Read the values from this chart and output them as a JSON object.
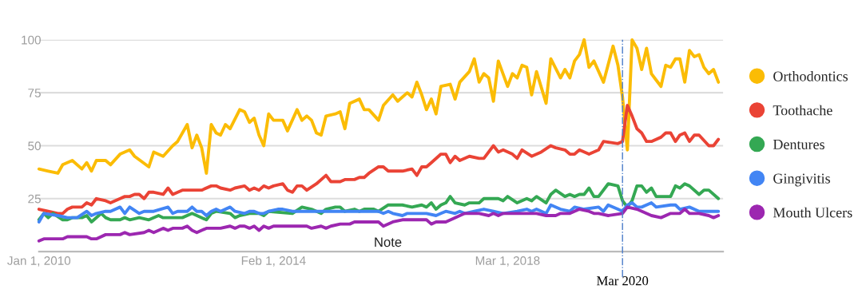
{
  "chart_data": {
    "type": "line",
    "xlim": [
      "2010-01",
      "2021-12"
    ],
    "ylim": [
      0,
      100
    ],
    "xticks": [
      {
        "value": "2010-01",
        "label": "Jan 1, 2010"
      },
      {
        "value": "2014-02",
        "label": "Feb 1, 2014"
      },
      {
        "value": "2018-03",
        "label": "Mar 1, 2018"
      }
    ],
    "yticks": [
      25,
      50,
      75,
      100
    ],
    "grid": "y",
    "legend": "right",
    "marker": "none",
    "line_style": "solid",
    "ref_lines": [
      {
        "axis": "x",
        "value": "2020-03",
        "label": "Mar 2020",
        "color": "#4a7cc9",
        "line_style": "dashed"
      }
    ],
    "annotations": [
      "Note"
    ],
    "series": [
      {
        "name": "Orthodontics",
        "color": "#fbbc05",
        "x": [
          "2010-01",
          "2010-03",
          "2010-05",
          "2010-06",
          "2010-08",
          "2010-10",
          "2010-11",
          "2010-12",
          "2011-01",
          "2011-03",
          "2011-04",
          "2011-06",
          "2011-08",
          "2011-09",
          "2011-12",
          "2012-01",
          "2012-03",
          "2012-05",
          "2012-06",
          "2012-08",
          "2012-09",
          "2012-10",
          "2012-11",
          "2012-12",
          "2013-01",
          "2013-02",
          "2013-03",
          "2013-04",
          "2013-05",
          "2013-07",
          "2013-08",
          "2013-09",
          "2013-10",
          "2013-11",
          "2013-12",
          "2014-01",
          "2014-02",
          "2014-04",
          "2014-05",
          "2014-07",
          "2014-08",
          "2014-09",
          "2014-10",
          "2014-11",
          "2014-12",
          "2015-01",
          "2015-03",
          "2015-04",
          "2015-05",
          "2015-06",
          "2015-08",
          "2015-09",
          "2015-10",
          "2015-12",
          "2016-01",
          "2016-03",
          "2016-04",
          "2016-06",
          "2016-07",
          "2016-08",
          "2016-09",
          "2016-10",
          "2016-11",
          "2016-12",
          "2017-01",
          "2017-03",
          "2017-04",
          "2017-05",
          "2017-07",
          "2017-08",
          "2017-09",
          "2017-10",
          "2017-11",
          "2017-12",
          "2018-01",
          "2018-03",
          "2018-04",
          "2018-05",
          "2018-06",
          "2018-07",
          "2018-08",
          "2018-09",
          "2018-11",
          "2018-12",
          "2019-02",
          "2019-03",
          "2019-04",
          "2019-05",
          "2019-06",
          "2019-07",
          "2019-08",
          "2019-09",
          "2019-11",
          "2020-01",
          "2020-02",
          "2020-03",
          "2020-04",
          "2020-05",
          "2020-06",
          "2020-07",
          "2020-08",
          "2020-09",
          "2020-10",
          "2020-11",
          "2020-12",
          "2021-01",
          "2021-02",
          "2021-03",
          "2021-04",
          "2021-05",
          "2021-06",
          "2021-07",
          "2021-08",
          "2021-09",
          "2021-10",
          "2021-11"
        ],
        "values": [
          39,
          38,
          37,
          41,
          43,
          39,
          42,
          38,
          43,
          43,
          41,
          46,
          48,
          45,
          40,
          47,
          45,
          50,
          52,
          60,
          49,
          55,
          49,
          37,
          60,
          56,
          55,
          60,
          58,
          67,
          66,
          61,
          63,
          55,
          50,
          65,
          62,
          62,
          57,
          67,
          62,
          64,
          62,
          56,
          55,
          64,
          65,
          66,
          58,
          70,
          72,
          67,
          67,
          62,
          69,
          74,
          71,
          75,
          73,
          80,
          74,
          67,
          72,
          65,
          78,
          79,
          72,
          80,
          85,
          91,
          80,
          84,
          82,
          71,
          90,
          78,
          84,
          82,
          88,
          87,
          74,
          85,
          70,
          91,
          82,
          86,
          82,
          90,
          93,
          100,
          87,
          90,
          80,
          97,
          88,
          73,
          48,
          100,
          96,
          86,
          96,
          84,
          81,
          78,
          88,
          87,
          91,
          91,
          80,
          95,
          92,
          93,
          87,
          84,
          86,
          80
        ]
      },
      {
        "name": "Toothache",
        "color": "#ea4335",
        "x": [
          "2010-01",
          "2010-03",
          "2010-05",
          "2010-06",
          "2010-07",
          "2010-08",
          "2010-10",
          "2010-11",
          "2010-12",
          "2011-01",
          "2011-03",
          "2011-04",
          "2011-06",
          "2011-07",
          "2011-08",
          "2011-09",
          "2011-10",
          "2011-11",
          "2011-12",
          "2012-01",
          "2012-03",
          "2012-04",
          "2012-05",
          "2012-07",
          "2012-08",
          "2012-11",
          "2013-01",
          "2013-02",
          "2013-03",
          "2013-05",
          "2013-06",
          "2013-08",
          "2013-09",
          "2013-10",
          "2013-11",
          "2013-12",
          "2014-01",
          "2014-02",
          "2014-04",
          "2014-05",
          "2014-06",
          "2014-07",
          "2014-08",
          "2014-09",
          "2014-11",
          "2015-01",
          "2015-02",
          "2015-04",
          "2015-05",
          "2015-07",
          "2015-08",
          "2015-09",
          "2015-10",
          "2015-12",
          "2016-01",
          "2016-02",
          "2016-05",
          "2016-07",
          "2016-08",
          "2016-09",
          "2016-10",
          "2016-11",
          "2017-01",
          "2017-02",
          "2017-03",
          "2017-04",
          "2017-05",
          "2017-07",
          "2017-09",
          "2017-10",
          "2017-12",
          "2018-01",
          "2018-02",
          "2018-04",
          "2018-05",
          "2018-06",
          "2018-08",
          "2018-10",
          "2018-12",
          "2019-01",
          "2019-03",
          "2019-04",
          "2019-05",
          "2019-06",
          "2019-08",
          "2019-10",
          "2019-11",
          "2020-02",
          "2020-03",
          "2020-04",
          "2020-05",
          "2020-06",
          "2020-07",
          "2020-08",
          "2020-09",
          "2020-11",
          "2020-12",
          "2021-01",
          "2021-02",
          "2021-03",
          "2021-04",
          "2021-05",
          "2021-06",
          "2021-07",
          "2021-09",
          "2021-10",
          "2021-11"
        ],
        "values": [
          20,
          19,
          18,
          18,
          20,
          21,
          21,
          23,
          22,
          25,
          24,
          23,
          25,
          26,
          26,
          27,
          27,
          25,
          28,
          28,
          27,
          30,
          27,
          29,
          29,
          29,
          31,
          31,
          30,
          29,
          30,
          31,
          29,
          30,
          29,
          31,
          30,
          31,
          32,
          29,
          28,
          31,
          31,
          29,
          32,
          36,
          33,
          33,
          34,
          34,
          35,
          35,
          37,
          40,
          40,
          38,
          38,
          39,
          36,
          40,
          40,
          42,
          46,
          46,
          42,
          45,
          43,
          45,
          44,
          44,
          50,
          47,
          48,
          46,
          44,
          48,
          45,
          47,
          50,
          49,
          48,
          46,
          46,
          48,
          46,
          48,
          52,
          51,
          52,
          69,
          64,
          58,
          56,
          52,
          52,
          54,
          56,
          56,
          52,
          55,
          56,
          52,
          55,
          55,
          50,
          50,
          53
        ]
      },
      {
        "name": "Dentures",
        "color": "#34a853",
        "x": [
          "2010-01",
          "2010-02",
          "2010-03",
          "2010-04",
          "2010-06",
          "2010-07",
          "2010-08",
          "2010-10",
          "2010-11",
          "2010-12",
          "2011-02",
          "2011-03",
          "2011-04",
          "2011-06",
          "2011-07",
          "2011-08",
          "2011-10",
          "2011-12",
          "2012-02",
          "2012-03",
          "2012-05",
          "2012-07",
          "2012-09",
          "2012-12",
          "2013-01",
          "2013-02",
          "2013-05",
          "2013-06",
          "2013-07",
          "2013-09",
          "2013-11",
          "2013-12",
          "2014-01",
          "2014-06",
          "2014-08",
          "2014-10",
          "2014-12",
          "2015-01",
          "2015-03",
          "2015-04",
          "2015-05",
          "2015-07",
          "2015-08",
          "2015-09",
          "2015-11",
          "2015-12",
          "2016-02",
          "2016-03",
          "2016-05",
          "2016-07",
          "2016-09",
          "2016-10",
          "2016-11",
          "2016-12",
          "2017-01",
          "2017-02",
          "2017-03",
          "2017-04",
          "2017-06",
          "2017-07",
          "2017-09",
          "2017-10",
          "2017-12",
          "2018-01",
          "2018-02",
          "2018-03",
          "2018-05",
          "2018-07",
          "2018-08",
          "2018-09",
          "2018-11",
          "2018-12",
          "2019-01",
          "2019-03",
          "2019-04",
          "2019-05",
          "2019-06",
          "2019-07",
          "2019-08",
          "2019-09",
          "2019-10",
          "2019-12",
          "2020-02",
          "2020-03",
          "2020-04",
          "2020-05",
          "2020-06",
          "2020-07",
          "2020-08",
          "2020-09",
          "2020-10",
          "2021-01",
          "2021-02",
          "2021-03",
          "2021-04",
          "2021-05",
          "2021-06",
          "2021-07",
          "2021-08",
          "2021-09",
          "2021-11"
        ],
        "values": [
          15,
          18,
          16,
          18,
          15,
          15,
          16,
          16,
          17,
          14,
          18,
          16,
          15,
          15,
          16,
          15,
          16,
          15,
          17,
          16,
          16,
          16,
          18,
          15,
          18,
          19,
          18,
          16,
          17,
          18,
          18,
          17,
          19,
          18,
          21,
          20,
          18,
          20,
          21,
          21,
          19,
          20,
          19,
          20,
          20,
          19,
          22,
          22,
          22,
          21,
          22,
          21,
          23,
          20,
          22,
          23,
          26,
          23,
          22,
          23,
          23,
          25,
          25,
          25,
          24,
          26,
          23,
          25,
          24,
          26,
          23,
          27,
          29,
          26,
          27,
          26,
          27,
          27,
          30,
          26,
          26,
          32,
          31,
          24,
          21,
          24,
          31,
          31,
          28,
          30,
          26,
          26,
          31,
          30,
          32,
          31,
          29,
          27,
          29,
          29,
          25
        ]
      },
      {
        "name": "Gingivitis",
        "color": "#4285f4",
        "x": [
          "2010-01",
          "2010-02",
          "2010-05",
          "2010-07",
          "2010-09",
          "2010-11",
          "2010-12",
          "2011-01",
          "2011-03",
          "2011-04",
          "2011-06",
          "2011-07",
          "2011-08",
          "2011-10",
          "2011-11",
          "2012-01",
          "2012-04",
          "2012-05",
          "2012-06",
          "2012-08",
          "2012-09",
          "2012-10",
          "2012-11",
          "2012-12",
          "2013-01",
          "2013-02",
          "2013-03",
          "2013-05",
          "2013-06",
          "2013-08",
          "2013-09",
          "2013-10",
          "2013-11",
          "2013-12",
          "2014-01",
          "2014-03",
          "2014-04",
          "2014-06",
          "2014-10",
          "2015-01",
          "2015-03",
          "2015-12",
          "2016-01",
          "2016-02",
          "2016-03",
          "2016-05",
          "2016-06",
          "2016-07",
          "2016-08",
          "2016-10",
          "2016-12",
          "2017-01",
          "2017-02",
          "2017-04",
          "2017-05",
          "2017-06",
          "2017-08",
          "2017-10",
          "2017-12",
          "2018-02",
          "2018-05",
          "2018-07",
          "2018-08",
          "2018-09",
          "2018-11",
          "2018-12",
          "2019-02",
          "2019-04",
          "2019-05",
          "2019-07",
          "2019-10",
          "2019-11",
          "2019-12",
          "2020-02",
          "2020-03",
          "2020-04",
          "2020-05",
          "2020-06",
          "2020-07",
          "2020-09",
          "2020-10",
          "2021-01",
          "2021-02",
          "2021-03",
          "2021-05",
          "2021-07",
          "2021-11"
        ],
        "values": [
          14,
          18,
          17,
          16,
          16,
          19,
          17,
          18,
          19,
          19,
          21,
          18,
          21,
          18,
          19,
          19,
          21,
          18,
          19,
          19,
          21,
          19,
          19,
          17,
          19,
          20,
          19,
          21,
          19,
          18,
          19,
          19,
          18,
          18,
          19,
          20,
          20,
          19,
          19,
          19,
          19,
          19,
          18,
          19,
          18,
          17,
          18,
          18,
          18,
          18,
          17,
          18,
          19,
          18,
          19,
          18,
          19,
          20,
          19,
          18,
          19,
          20,
          19,
          20,
          18,
          22,
          20,
          19,
          21,
          20,
          21,
          19,
          22,
          20,
          19,
          22,
          23,
          21,
          21,
          23,
          21,
          22,
          22,
          20,
          21,
          19,
          19
        ]
      },
      {
        "name": "Mouth Ulcers",
        "color": "#9c27b0",
        "x": [
          "2010-01",
          "2010-02",
          "2010-06",
          "2010-07",
          "2010-11",
          "2010-12",
          "2011-01",
          "2011-03",
          "2011-06",
          "2011-07",
          "2011-08",
          "2011-11",
          "2011-12",
          "2012-01",
          "2012-03",
          "2012-04",
          "2012-05",
          "2012-07",
          "2012-08",
          "2012-09",
          "2012-10",
          "2012-12",
          "2013-03",
          "2013-05",
          "2013-06",
          "2013-07",
          "2013-08",
          "2013-09",
          "2013-10",
          "2013-11",
          "2013-12",
          "2014-01",
          "2014-02",
          "2014-05",
          "2014-06",
          "2014-07",
          "2014-09",
          "2014-10",
          "2014-12",
          "2015-01",
          "2015-02",
          "2015-04",
          "2015-06",
          "2015-07",
          "2015-09",
          "2015-12",
          "2016-01",
          "2016-03",
          "2016-05",
          "2016-07",
          "2016-10",
          "2016-11",
          "2016-12",
          "2017-02",
          "2017-04",
          "2017-06",
          "2017-09",
          "2017-11",
          "2017-12",
          "2018-01",
          "2018-02",
          "2018-05",
          "2018-09",
          "2018-11",
          "2019-01",
          "2019-02",
          "2019-04",
          "2019-06",
          "2019-08",
          "2019-09",
          "2019-10",
          "2019-12",
          "2020-03",
          "2020-04",
          "2020-06",
          "2020-09",
          "2020-11",
          "2021-01",
          "2021-03",
          "2021-04",
          "2021-05",
          "2021-07",
          "2021-09",
          "2021-10",
          "2021-11"
        ],
        "values": [
          5,
          6,
          6,
          7,
          7,
          6,
          6,
          8,
          8,
          9,
          8,
          9,
          10,
          9,
          11,
          10,
          11,
          11,
          12,
          10,
          9,
          11,
          11,
          12,
          11,
          12,
          12,
          11,
          12,
          10,
          12,
          11,
          12,
          12,
          12,
          12,
          12,
          11,
          12,
          11,
          12,
          13,
          13,
          14,
          14,
          14,
          12,
          14,
          15,
          15,
          15,
          13,
          14,
          14,
          16,
          18,
          18,
          17,
          18,
          17,
          18,
          18,
          18,
          17,
          17,
          18,
          18,
          20,
          19,
          18,
          18,
          17,
          18,
          21,
          20,
          17,
          16,
          18,
          18,
          20,
          18,
          18,
          17,
          16,
          17
        ]
      }
    ]
  }
}
